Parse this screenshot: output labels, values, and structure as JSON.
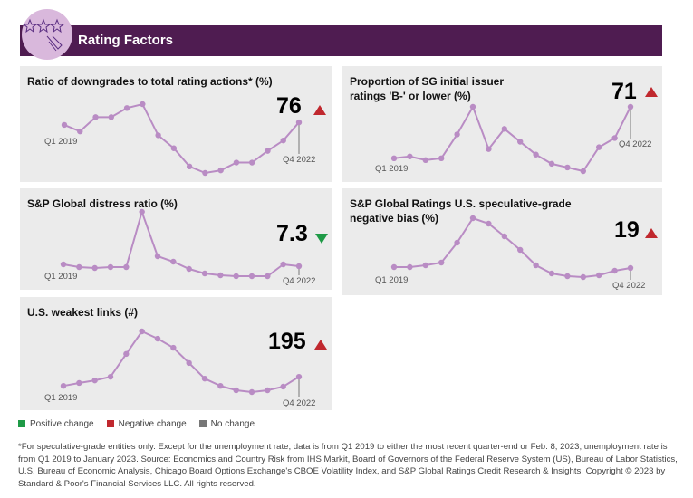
{
  "header": {
    "title": "Rating Factors",
    "icon": "rating-stars-icon"
  },
  "colors": {
    "header": "#4f1c51",
    "line": "#b98cc4",
    "negative": "#c0282e",
    "positive": "#1e9a46",
    "neutral": "#777777",
    "panel": "#ebebeb"
  },
  "chart_data": [
    {
      "type": "line",
      "title": "Ratio of downgrades to total rating actions* (%)",
      "start_label": "Q1 2019",
      "end_label": "Q4 2022",
      "latest": "76",
      "change": "negative",
      "values": [
        74,
        69,
        80,
        80,
        87,
        90,
        66,
        56,
        42,
        37,
        39,
        45,
        45,
        54,
        62,
        76
      ]
    },
    {
      "type": "line",
      "title": "Proportion of SG initial issuer ratings 'B-' or lower (%)",
      "start_label": "Q1 2019",
      "end_label": "Q4 2022",
      "latest": "71",
      "change": "negative",
      "values": [
        43,
        44,
        42,
        43,
        56,
        71,
        48,
        59,
        52,
        45,
        40,
        38,
        36,
        49,
        54,
        71
      ]
    },
    {
      "type": "line",
      "title": "S&P Global distress ratio (%)",
      "start_label": "Q1 2019",
      "end_label": "Q4 2022",
      "latest": "7.3",
      "change": "positive",
      "values": [
        7.5,
        7.2,
        7.1,
        7.2,
        7.2,
        13.3,
        8.4,
        7.8,
        7.0,
        6.5,
        6.3,
        6.2,
        6.2,
        6.2,
        7.5,
        7.3
      ]
    },
    {
      "type": "line",
      "title": "S&P Global Ratings U.S. speculative-grade negative bias (%)",
      "start_label": "Q1 2019",
      "end_label": "Q4 2022",
      "latest": "19",
      "change": "negative",
      "values": [
        19.4,
        19.4,
        20.2,
        21.4,
        30.2,
        41,
        38.6,
        33,
        27,
        20.2,
        16.6,
        15.4,
        15,
        15.8,
        17.8,
        19
      ]
    },
    {
      "type": "line",
      "title": "U.S. weakest links (#)",
      "start_label": "Q1 2019",
      "end_label": "Q4 2022",
      "latest": "195",
      "change": "negative",
      "values": [
        170,
        178,
        185,
        195,
        258,
        320,
        300,
        275,
        233,
        190,
        170,
        158,
        153,
        158,
        168,
        195
      ]
    }
  ],
  "legend": [
    {
      "label": "Positive change",
      "color": "#1e9a46"
    },
    {
      "label": "Negative change",
      "color": "#c0282e"
    },
    {
      "label": "No change",
      "color": "#777777"
    }
  ],
  "footnote": "*For speculative-grade entities only. Except for the unemployment rate, data is from Q1 2019 to either the most recent quarter-end or Feb. 8, 2023; unemployment rate is from Q1 2019 to January 2023. Source: Economics and Country Risk from IHS Markit, Board of Governors of the Federal Reserve System (US), Bureau of Labor Statistics, U.S. Bureau of Economic Analysis, Chicago Board Options Exchange's CBOE Volatility Index, and S&P Global Ratings Credit Research & Insights. Copyright © 2023 by Standard & Poor's Financial Services LLC. All rights reserved."
}
